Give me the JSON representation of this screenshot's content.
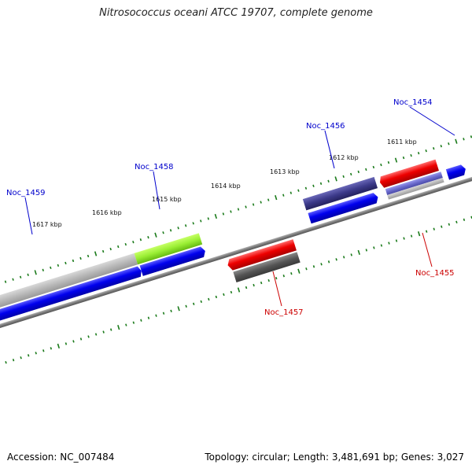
{
  "title": "Nitrosococcus oceani ATCC 19707, complete genome",
  "footer": {
    "accession": "Accession: NC_007484",
    "summary": "Topology: circular; Length: 3,481,691 bp; Genes: 3,027"
  },
  "kbp_labels": [
    "1617 kbp",
    "1616 kbp",
    "1615 kbp",
    "1614 kbp",
    "1613 kbp",
    "1612 kbp",
    "1611 kbp"
  ],
  "genes": [
    {
      "id": "Noc_1459",
      "color": "#0000cc"
    },
    {
      "id": "Noc_1458",
      "color": "#0000cc"
    },
    {
      "id": "Noc_1457",
      "color": "#cc0000"
    },
    {
      "id": "Noc_1456",
      "color": "#0000cc"
    },
    {
      "id": "Noc_1455",
      "color": "#cc0000"
    },
    {
      "id": "Noc_1454",
      "color": "#0000cc"
    }
  ],
  "colors": {
    "backbone": "#7a7a7a",
    "tick": "#1a7a1a",
    "forward_gene": "#0000ee",
    "reverse_gene": "#ee0000",
    "feature_gray": "#b8b8b8",
    "feature_green": "#99ee33",
    "feature_purple": "#3c3a8a",
    "feature_dark": "#555555"
  }
}
